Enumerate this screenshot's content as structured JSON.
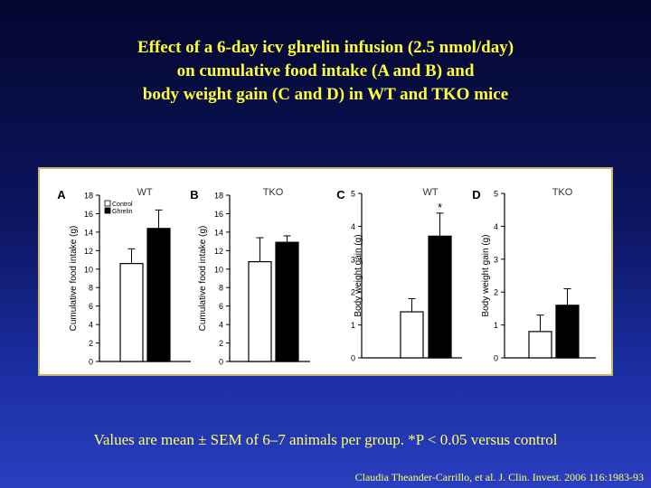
{
  "slide": {
    "title_lines": [
      "Effect of a 6-day icv ghrelin infusion (2.5 nmol/day)",
      "on cumulative food intake (A and B) and",
      "body weight gain (C and D) in WT and TKO mice"
    ],
    "footnote": "Values are mean ± SEM of 6–7 animals per group. *P < 0.05 versus control",
    "citation": "Claudia Theander-Carrillo, et al. J. Clin. Invest. 2006 116:1983-93"
  },
  "colors": {
    "title": "#ffff33",
    "control_fill": "#ffffff",
    "ghrelin_fill": "#000000"
  },
  "chart_data": [
    {
      "type": "bar",
      "panel": "A",
      "title": "WT",
      "ylabel": "Cumulative food intake (g)",
      "ylim": [
        0,
        18
      ],
      "yticks": [
        0,
        2,
        4,
        6,
        8,
        10,
        12,
        14,
        16,
        18
      ],
      "legend": [
        "Control",
        "Ghrelin"
      ],
      "series": [
        {
          "name": "Control",
          "value": 10.6,
          "error": 1.6
        },
        {
          "name": "Ghrelin",
          "value": 14.4,
          "error": 2.0
        }
      ]
    },
    {
      "type": "bar",
      "panel": "B",
      "title": "TKO",
      "ylabel": "Cumulative food intake (g)",
      "ylim": [
        0,
        18
      ],
      "yticks": [
        0,
        2,
        4,
        6,
        8,
        10,
        12,
        14,
        16,
        18
      ],
      "series": [
        {
          "name": "Control",
          "value": 10.8,
          "error": 2.6
        },
        {
          "name": "Ghrelin",
          "value": 12.9,
          "error": 0.7
        }
      ]
    },
    {
      "type": "bar",
      "panel": "C",
      "title": "WT",
      "ylabel": "Body weight gain (g)",
      "ylim": [
        0,
        5
      ],
      "yticks": [
        0,
        1,
        2,
        3,
        4,
        5
      ],
      "series": [
        {
          "name": "Control",
          "value": 1.4,
          "error": 0.4
        },
        {
          "name": "Ghrelin",
          "value": 3.7,
          "error": 0.7,
          "annotation": "*"
        }
      ]
    },
    {
      "type": "bar",
      "panel": "D",
      "title": "TKO",
      "ylabel": "Body weight gain (g)",
      "ylim": [
        0,
        5
      ],
      "yticks": [
        0,
        1,
        2,
        3,
        4,
        5
      ],
      "series": [
        {
          "name": "Control",
          "value": 0.8,
          "error": 0.5
        },
        {
          "name": "Ghrelin",
          "value": 1.6,
          "error": 0.5
        }
      ]
    }
  ]
}
